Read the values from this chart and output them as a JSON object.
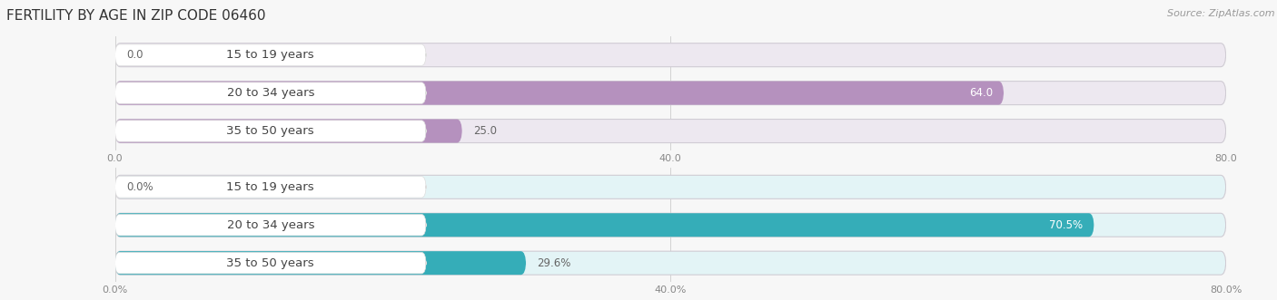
{
  "title": "FERTILITY BY AGE IN ZIP CODE 06460",
  "source": "Source: ZipAtlas.com",
  "top_bars": {
    "categories": [
      "15 to 19 years",
      "20 to 34 years",
      "35 to 50 years"
    ],
    "values": [
      0.0,
      64.0,
      25.0
    ],
    "xlim": [
      0,
      80
    ],
    "xticks": [
      0.0,
      40.0,
      80.0
    ],
    "xtick_labels": [
      "0.0",
      "40.0",
      "80.0"
    ],
    "bar_color": "#b591be",
    "bar_bg_color": "#ede8f0",
    "label_inside_color": "#ffffff",
    "label_outside_color": "#666666"
  },
  "bottom_bars": {
    "categories": [
      "15 to 19 years",
      "20 to 34 years",
      "35 to 50 years"
    ],
    "values": [
      0.0,
      70.5,
      29.6
    ],
    "xlim": [
      0,
      80
    ],
    "xticks": [
      0.0,
      40.0,
      80.0
    ],
    "xtick_labels": [
      "0.0%",
      "40.0%",
      "80.0%"
    ],
    "bar_color": "#35adb8",
    "bar_bg_color": "#e3f4f6",
    "label_inside_color": "#ffffff",
    "label_outside_color": "#666666"
  },
  "label_text_top": [
    "0.0",
    "64.0",
    "25.0"
  ],
  "label_text_bottom": [
    "0.0%",
    "70.5%",
    "29.6%"
  ],
  "cat_label_color": "#444444",
  "cat_label_fontsize": 9.5,
  "bar_height": 0.62,
  "background_color": "#f7f7f7",
  "title_fontsize": 11,
  "source_fontsize": 8,
  "value_label_fontsize": 8.5,
  "pill_bg_color": "#ffffff",
  "pill_border_color": "#dddddd"
}
